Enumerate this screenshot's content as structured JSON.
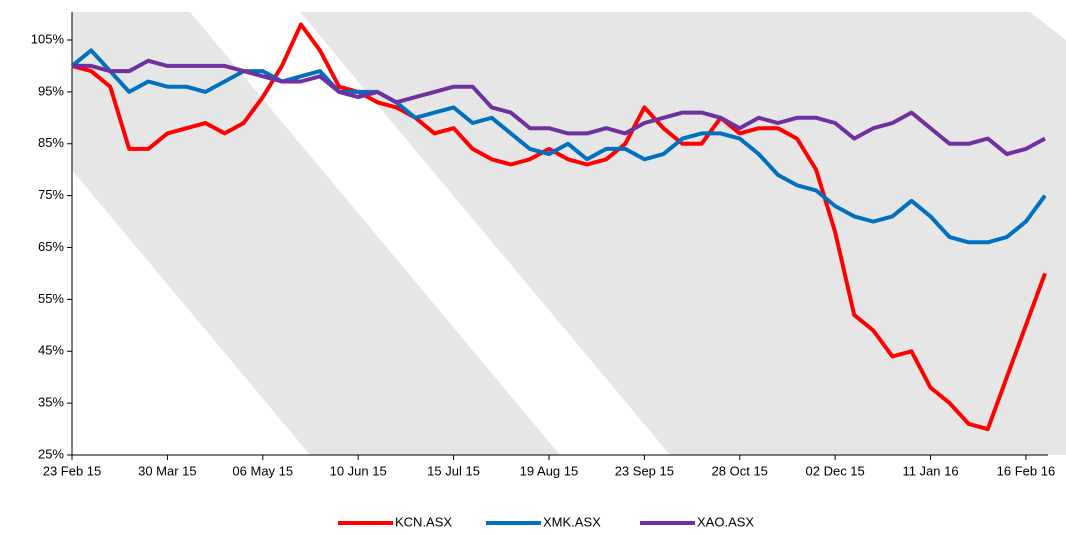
{
  "chart_data": {
    "type": "line",
    "categories": [
      "23 Feb 15",
      null,
      null,
      null,
      null,
      "30 Mar 15",
      null,
      null,
      null,
      null,
      "06 May 15",
      null,
      null,
      null,
      null,
      "10 Jun 15",
      null,
      null,
      null,
      null,
      "15 Jul 15",
      null,
      null,
      null,
      null,
      "19 Aug 15",
      null,
      null,
      null,
      null,
      "23 Sep 15",
      null,
      null,
      null,
      null,
      "28 Oct 15",
      null,
      null,
      null,
      null,
      "02 Dec 15",
      null,
      null,
      null,
      null,
      "11 Jan 16",
      null,
      null,
      null,
      null,
      "16 Feb 16",
      null
    ],
    "series": [
      {
        "name": "KCN.ASX",
        "color": "#ff0000",
        "values": [
          100,
          99,
          96,
          84,
          84,
          87,
          88,
          89,
          87,
          89,
          94,
          100,
          108,
          103,
          96,
          95,
          93,
          92,
          90,
          87,
          88,
          84,
          82,
          81,
          82,
          84,
          82,
          81,
          82,
          85,
          92,
          88,
          85,
          85,
          90,
          87,
          88,
          88,
          86,
          80,
          68,
          52,
          49,
          44,
          45,
          38,
          35,
          31,
          30,
          40,
          50,
          60
        ]
      },
      {
        "name": "XMK.ASX",
        "color": "#0070c0",
        "values": [
          100,
          103,
          99,
          95,
          97,
          96,
          96,
          95,
          97,
          99,
          99,
          97,
          98,
          99,
          95,
          95,
          95,
          93,
          90,
          91,
          92,
          89,
          90,
          87,
          84,
          83,
          85,
          82,
          84,
          84,
          82,
          83,
          86,
          87,
          87,
          86,
          83,
          79,
          77,
          76,
          73,
          71,
          70,
          71,
          74,
          71,
          67,
          66,
          66,
          67,
          70,
          75
        ]
      },
      {
        "name": "XAO.ASX",
        "color": "#7030a0",
        "values": [
          100,
          100,
          99,
          99,
          101,
          100,
          100,
          100,
          100,
          99,
          98,
          97,
          97,
          98,
          95,
          94,
          95,
          93,
          94,
          95,
          96,
          96,
          92,
          91,
          88,
          88,
          87,
          87,
          88,
          87,
          89,
          90,
          91,
          91,
          90,
          88,
          90,
          89,
          90,
          90,
          89,
          86,
          88,
          89,
          91,
          88,
          85,
          85,
          86,
          83,
          84,
          86
        ]
      }
    ],
    "ylim": [
      25,
      110.4
    ],
    "yticks": [
      {
        "value": 25,
        "label": "25%"
      },
      {
        "value": 35,
        "label": "35%"
      },
      {
        "value": 45,
        "label": "45%"
      },
      {
        "value": 55,
        "label": "55%"
      },
      {
        "value": 65,
        "label": "65%"
      },
      {
        "value": 75,
        "label": "75%"
      },
      {
        "value": 85,
        "label": "85%"
      },
      {
        "value": 95,
        "label": "95%"
      },
      {
        "value": 105,
        "label": "105%"
      }
    ],
    "legend": "bottom"
  }
}
